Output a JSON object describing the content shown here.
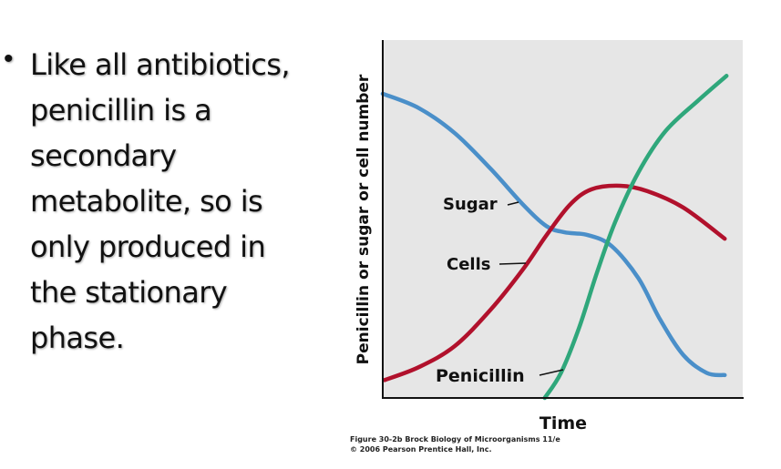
{
  "slide": {
    "bullet_lines": [
      "Like all antibiotics,",
      "penicillin is a",
      "secondary",
      "metabolite, so is",
      "only produced in",
      "the stationary",
      "phase."
    ]
  },
  "chart_data": {
    "type": "line",
    "xlabel": "Time",
    "ylabel": "Penicillin or sugar or cell number",
    "xlim": [
      0,
      10
    ],
    "ylim": [
      0,
      10
    ],
    "grid": false,
    "background": "#e6e6e6",
    "legend": "inline labels",
    "series": [
      {
        "name": "Sugar",
        "color": "#4a8fc9",
        "x": [
          0,
          1,
          2,
          3,
          3.9,
          4.55,
          5.05,
          5.7,
          6.35,
          7.1,
          7.7,
          8.35,
          9,
          9.5
        ],
        "y": [
          8.5,
          8.1,
          7.4,
          6.4,
          5.4,
          4.8,
          4.63,
          4.55,
          4.25,
          3.35,
          2.2,
          1.2,
          0.7,
          0.64
        ]
      },
      {
        "name": "Cells",
        "color": "#b1112c",
        "x": [
          0.05,
          1,
          2,
          3,
          3.9,
          4.55,
          5.2,
          5.8,
          6.6,
          7.35,
          8.35,
          9.5
        ],
        "y": [
          0.5,
          0.86,
          1.45,
          2.47,
          3.6,
          4.55,
          5.4,
          5.83,
          5.93,
          5.78,
          5.32,
          4.45
        ]
      },
      {
        "name": "Penicillin",
        "color": "#2fa77b",
        "x": [
          4.5,
          4.95,
          5.45,
          5.95,
          6.45,
          7.1,
          7.85,
          8.75,
          9.55
        ],
        "y": [
          0,
          0.7,
          1.95,
          3.5,
          4.9,
          6.3,
          7.45,
          8.3,
          9.0
        ]
      }
    ],
    "caption_lines": [
      "Figure 30-2b  Brock Biology of Microorganisms 11/e",
      "© 2006 Pearson Prentice Hall, Inc."
    ]
  }
}
